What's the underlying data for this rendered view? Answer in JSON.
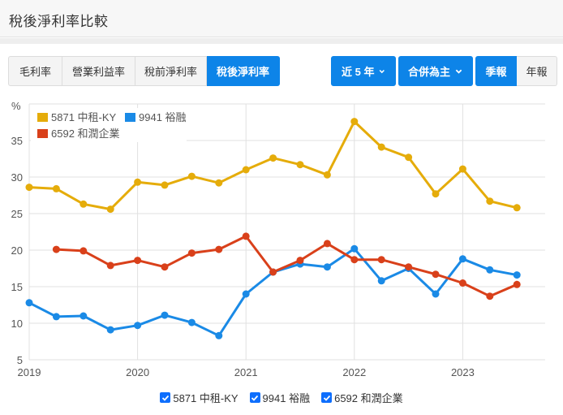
{
  "header": {
    "title": "稅後淨利率比較"
  },
  "metric_tabs": [
    {
      "label": "毛利率",
      "active": false
    },
    {
      "label": "營業利益率",
      "active": false
    },
    {
      "label": "稅前淨利率",
      "active": false
    },
    {
      "label": "稅後淨利率",
      "active": true
    }
  ],
  "controls": {
    "period_dropdown": "近 5 年",
    "basis_dropdown": "合併為主",
    "frequency": [
      {
        "label": "季報",
        "active": true
      },
      {
        "label": "年報",
        "active": false
      }
    ]
  },
  "colors": {
    "accent": "#0d84e8",
    "series_5871": "#e5ac0a",
    "series_9941": "#1a8ae6",
    "series_6592": "#d9401a"
  },
  "legend": [
    {
      "label": "5871 中租-KY",
      "color": "#e5ac0a"
    },
    {
      "label": "9941 裕融",
      "color": "#1a8ae6"
    },
    {
      "label": "6592 和潤企業",
      "color": "#d9401a"
    }
  ],
  "bottom_checkboxes": [
    {
      "label": "5871 中租-KY",
      "checked": true
    },
    {
      "label": "9941 裕融",
      "checked": true
    },
    {
      "label": "6592 和潤企業",
      "checked": true
    }
  ],
  "chart_data": {
    "type": "line",
    "title": "稅後淨利率比較",
    "xlabel": "",
    "ylabel": "%",
    "ylim": [
      5,
      40
    ],
    "yticks": [
      5,
      10,
      15,
      20,
      25,
      30,
      35
    ],
    "xticks": [
      "2019",
      "2020",
      "2021",
      "2022",
      "2023"
    ],
    "grid": true,
    "legend_position": "top-left",
    "x": [
      "2019Q1",
      "2019Q2",
      "2019Q3",
      "2019Q4",
      "2020Q1",
      "2020Q2",
      "2020Q3",
      "2020Q4",
      "2021Q1",
      "2021Q2",
      "2021Q3",
      "2021Q4",
      "2022Q1",
      "2022Q2",
      "2022Q3",
      "2022Q4",
      "2023Q1",
      "2023Q2",
      "2023Q3"
    ],
    "series": [
      {
        "name": "5871 中租-KY",
        "color": "#e5ac0a",
        "values": [
          28.6,
          28.4,
          26.3,
          25.6,
          29.3,
          28.9,
          30.1,
          29.2,
          31.0,
          32.6,
          31.7,
          30.3,
          37.6,
          34.1,
          32.7,
          27.7,
          31.1,
          26.7,
          25.8
        ]
      },
      {
        "name": "9941 裕融",
        "color": "#1a8ae6",
        "values": [
          12.8,
          10.9,
          11.0,
          9.1,
          9.7,
          11.1,
          10.1,
          8.3,
          14.0,
          17.0,
          18.1,
          17.7,
          20.2,
          15.8,
          17.5,
          14.0,
          18.8,
          17.3,
          16.6
        ]
      },
      {
        "name": "6592 和潤企業",
        "color": "#d9401a",
        "values": [
          null,
          20.1,
          19.9,
          17.9,
          18.6,
          17.7,
          19.6,
          20.1,
          21.9,
          17.0,
          18.6,
          20.9,
          18.7,
          18.7,
          17.7,
          16.7,
          15.5,
          13.7,
          15.3
        ]
      }
    ]
  }
}
